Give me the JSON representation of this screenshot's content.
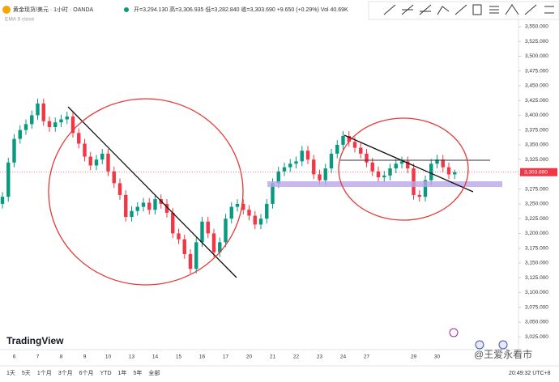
{
  "chart_data": {
    "type": "candlestick",
    "title": "黄金现货/美元 · 1小时 · OANDA",
    "ohlc_summary": "开=3,294.130 高=3,306.935 低=3,282.840 收=3,303.690 +9.650 (+0.29%) Vol 40.69K",
    "indicator": "EMA 9 close",
    "last_label": "3,303.690",
    "watermark": "TradingView",
    "credit": "@王爱永看市",
    "ranges": [
      "1天",
      "5天",
      "1个月",
      "3个月",
      "6个月",
      "YTD",
      "1年",
      "5年",
      "全部"
    ],
    "clock": "20:49:32 UTC+8",
    "up_color": "#089981",
    "down_color": "#f23645",
    "categories": [
      null,
      null,
      "6",
      null,
      null,
      null,
      "7",
      null,
      null,
      null,
      "8",
      null,
      null,
      null,
      "9",
      null,
      null,
      null,
      "10",
      null,
      null,
      null,
      "13",
      null,
      null,
      null,
      "14",
      null,
      null,
      null,
      "15",
      null,
      null,
      null,
      "16",
      null,
      null,
      null,
      "17",
      null,
      null,
      null,
      "20",
      null,
      null,
      null,
      "21",
      null,
      null,
      null,
      "22",
      null,
      null,
      null,
      "23",
      null,
      null,
      null,
      "24",
      null,
      null,
      null,
      "27",
      null,
      null,
      null,
      null,
      null,
      null,
      null,
      "29",
      null,
      null,
      null,
      "30",
      null,
      null,
      null
    ],
    "open": [
      3250,
      3262,
      3320,
      3360,
      3375,
      3385,
      3400,
      3420,
      3390,
      3380,
      3388,
      3393,
      3398,
      3370,
      3352,
      3330,
      3315,
      3325,
      3335,
      3305,
      3285,
      3265,
      3228,
      3238,
      3245,
      3252,
      3240,
      3258,
      3250,
      3235,
      3200,
      3190,
      3165,
      3140,
      3185,
      3220,
      3200,
      3168,
      3185,
      3225,
      3245,
      3250,
      3240,
      3230,
      3215,
      3225,
      3250,
      3285,
      3305,
      3312,
      3318,
      3322,
      3340,
      3325,
      3300,
      3290,
      3310,
      3335,
      3350,
      3365,
      3355,
      3345,
      3335,
      3320,
      3305,
      3295,
      3298,
      3310,
      3318,
      3322,
      3310,
      3265,
      3262,
      3290,
      3318,
      3325,
      3312,
      3300
    ],
    "high": [
      3270,
      3328,
      3368,
      3383,
      3393,
      3408,
      3428,
      3428,
      3398,
      3396,
      3401,
      3406,
      3406,
      3378,
      3360,
      3338,
      3333,
      3343,
      3343,
      3313,
      3293,
      3273,
      3246,
      3253,
      3260,
      3260,
      3266,
      3266,
      3258,
      3243,
      3208,
      3198,
      3173,
      3193,
      3228,
      3228,
      3208,
      3193,
      3233,
      3253,
      3258,
      3258,
      3248,
      3238,
      3233,
      3258,
      3293,
      3313,
      3320,
      3326,
      3330,
      3348,
      3348,
      3333,
      3308,
      3318,
      3343,
      3358,
      3373,
      3373,
      3363,
      3353,
      3343,
      3328,
      3313,
      3306,
      3318,
      3326,
      3330,
      3330,
      3318,
      3273,
      3298,
      3326,
      3333,
      3333,
      3320,
      3308
    ],
    "low": [
      3242,
      3254,
      3312,
      3352,
      3367,
      3377,
      3392,
      3382,
      3372,
      3372,
      3380,
      3385,
      3362,
      3344,
      3322,
      3307,
      3307,
      3317,
      3297,
      3277,
      3257,
      3220,
      3220,
      3230,
      3237,
      3232,
      3232,
      3242,
      3227,
      3192,
      3182,
      3157,
      3132,
      3132,
      3177,
      3192,
      3160,
      3160,
      3177,
      3217,
      3237,
      3232,
      3222,
      3207,
      3207,
      3217,
      3242,
      3277,
      3297,
      3304,
      3310,
      3314,
      3317,
      3292,
      3282,
      3282,
      3302,
      3327,
      3342,
      3347,
      3337,
      3327,
      3312,
      3297,
      3287,
      3287,
      3290,
      3302,
      3310,
      3302,
      3257,
      3254,
      3254,
      3282,
      3310,
      3304,
      3292,
      3292
    ],
    "close": [
      3262,
      3320,
      3360,
      3375,
      3385,
      3400,
      3420,
      3390,
      3380,
      3388,
      3393,
      3398,
      3370,
      3352,
      3330,
      3315,
      3325,
      3335,
      3305,
      3285,
      3265,
      3228,
      3238,
      3245,
      3252,
      3240,
      3258,
      3250,
      3235,
      3200,
      3190,
      3165,
      3140,
      3185,
      3220,
      3200,
      3168,
      3185,
      3225,
      3245,
      3250,
      3240,
      3230,
      3215,
      3225,
      3250,
      3285,
      3305,
      3312,
      3318,
      3322,
      3340,
      3325,
      3300,
      3290,
      3310,
      3335,
      3350,
      3365,
      3355,
      3345,
      3335,
      3320,
      3305,
      3295,
      3298,
      3310,
      3318,
      3322,
      3310,
      3265,
      3262,
      3290,
      3318,
      3325,
      3312,
      3300,
      3303.69
    ],
    "ylim": [
      3006,
      3565
    ],
    "yticks": [
      {
        "value": 3025,
        "label": "3,025.000"
      },
      {
        "value": 3050,
        "label": "3,050.000"
      },
      {
        "value": 3075,
        "label": "3,075.000"
      },
      {
        "value": 3100,
        "label": "3,100.000"
      },
      {
        "value": 3125,
        "label": "3,125.000"
      },
      {
        "value": 3150,
        "label": "3,150.000"
      },
      {
        "value": 3175,
        "label": "3,175.000"
      },
      {
        "value": 3200,
        "label": "3,200.000"
      },
      {
        "value": 3225,
        "label": "3,225.000"
      },
      {
        "value": 3250,
        "label": "3,250.000"
      },
      {
        "value": 3275,
        "label": "3,275.000"
      },
      {
        "value": 3300,
        "label": "3,300.000"
      },
      {
        "value": 3325,
        "label": "3,325.000"
      },
      {
        "value": 3350,
        "label": "3,350.000"
      },
      {
        "value": 3375,
        "label": "3,375.000"
      },
      {
        "value": 3400,
        "label": "3,400.000"
      },
      {
        "value": 3425,
        "label": "3,425.000"
      },
      {
        "value": 3450,
        "label": "3,450.000"
      },
      {
        "value": 3475,
        "label": "3,475.000"
      },
      {
        "value": 3500,
        "label": "3,500.000"
      },
      {
        "value": 3525,
        "label": "3,525.000"
      },
      {
        "value": 3550,
        "label": "3,550.000"
      }
    ]
  }
}
